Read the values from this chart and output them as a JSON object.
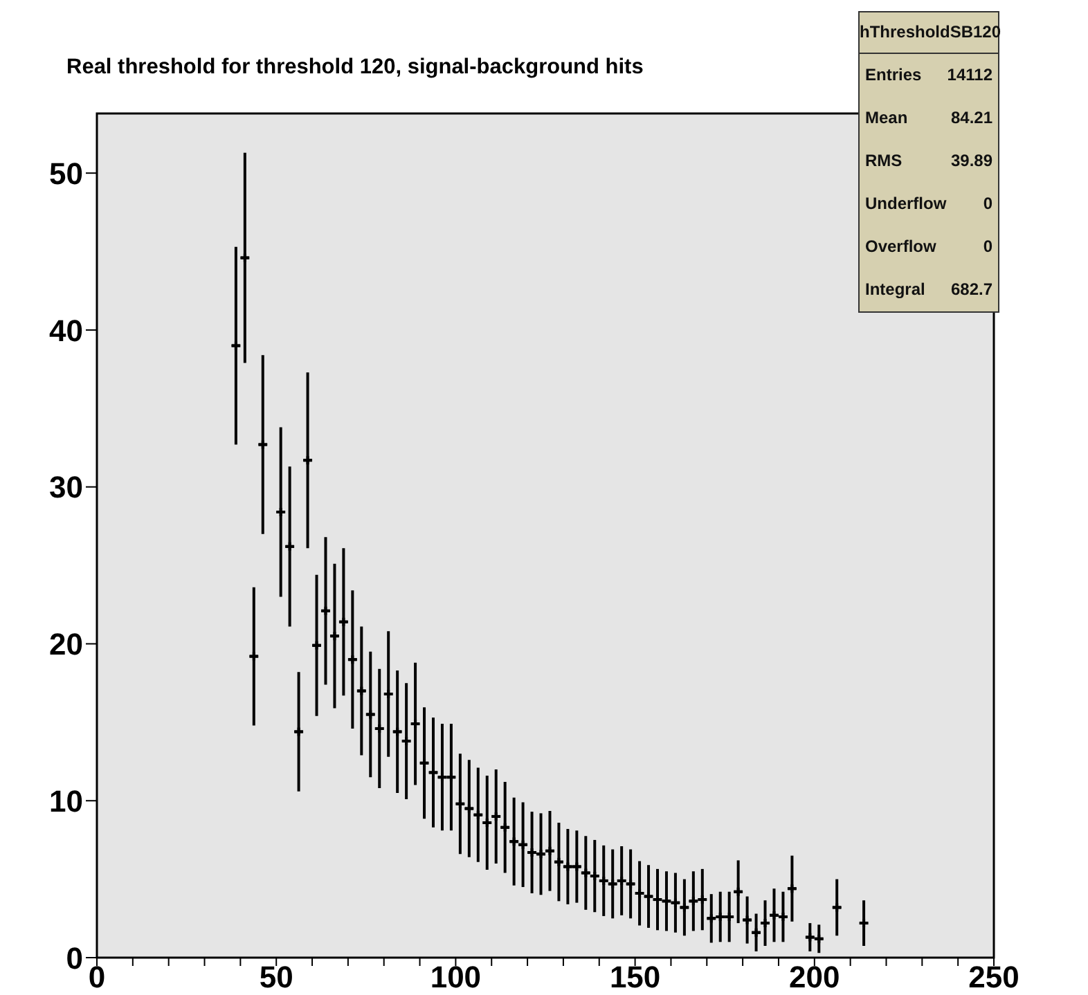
{
  "chart_data": {
    "type": "scatter",
    "title": "Real threshold for threshold 120, signal-background hits",
    "annotations": [
      "hThresholdSB120",
      "Entries",
      "14112",
      "Mean",
      "84.21",
      "RMS",
      "39.89",
      "Underflow",
      "0",
      "Overflow",
      "0",
      "Integral",
      "682.7"
    ],
    "x": [
      38.75,
      41.25,
      43.75,
      46.25,
      51.25,
      53.75,
      56.25,
      58.75,
      61.25,
      63.75,
      66.25,
      68.75,
      71.25,
      73.75,
      76.25,
      78.75,
      81.25,
      83.75,
      86.25,
      88.75,
      91.25,
      93.75,
      96.25,
      98.75,
      101.25,
      103.75,
      106.25,
      108.75,
      111.25,
      113.75,
      116.25,
      118.75,
      121.25,
      123.75,
      126.25,
      128.75,
      131.25,
      133.75,
      136.25,
      138.75,
      141.25,
      143.75,
      146.25,
      148.75,
      151.25,
      153.75,
      156.25,
      158.75,
      161.25,
      163.75,
      166.25,
      168.75,
      171.25,
      173.75,
      176.25,
      178.75,
      181.25,
      183.75,
      186.25,
      188.75,
      191.25,
      193.75,
      198.75,
      201.25,
      206.25,
      213.75
    ],
    "values": [
      39.0,
      44.6,
      19.2,
      32.7,
      28.4,
      26.2,
      14.4,
      31.7,
      19.9,
      22.1,
      20.5,
      21.4,
      19.0,
      17.0,
      15.5,
      14.6,
      16.8,
      14.4,
      13.8,
      14.9,
      12.4,
      11.8,
      11.5,
      11.5,
      9.8,
      9.5,
      9.1,
      8.6,
      9.0,
      8.3,
      7.4,
      7.2,
      6.7,
      6.6,
      6.8,
      6.1,
      5.8,
      5.8,
      5.4,
      5.2,
      4.9,
      4.7,
      4.9,
      4.7,
      4.1,
      3.9,
      3.7,
      3.6,
      3.5,
      3.2,
      3.6,
      3.7,
      2.5,
      2.6,
      2.6,
      4.2,
      2.4,
      1.6,
      2.2,
      2.7,
      2.6,
      4.4,
      1.3,
      1.2,
      3.2,
      2.2
    ],
    "errors": [
      6.3,
      6.7,
      4.4,
      5.7,
      5.4,
      5.1,
      3.8,
      5.6,
      4.5,
      4.7,
      4.6,
      4.7,
      4.4,
      4.1,
      4.0,
      3.8,
      4.0,
      3.9,
      3.7,
      3.9,
      3.55,
      3.5,
      3.4,
      3.4,
      3.2,
      3.1,
      3.0,
      3.0,
      3.0,
      2.9,
      2.8,
      2.7,
      2.6,
      2.6,
      2.55,
      2.5,
      2.4,
      2.3,
      2.35,
      2.3,
      2.25,
      2.2,
      2.2,
      2.2,
      2.05,
      2.0,
      1.95,
      1.9,
      1.9,
      1.8,
      1.9,
      1.95,
      1.55,
      1.6,
      1.6,
      2.0,
      1.5,
      1.2,
      1.45,
      1.7,
      1.6,
      2.1,
      0.9,
      0.9,
      1.8,
      1.45
    ],
    "xerrors": [
      1.25,
      1.25,
      1.25,
      1.25,
      1.25,
      1.25,
      1.25,
      1.25,
      1.25,
      1.25,
      1.25,
      1.25,
      1.25,
      1.25,
      1.25,
      1.25,
      1.25,
      1.25,
      1.25,
      1.25,
      1.25,
      1.25,
      1.25,
      1.25,
      1.25,
      1.25,
      1.25,
      1.25,
      1.25,
      1.25,
      1.25,
      1.25,
      1.25,
      1.25,
      1.25,
      1.25,
      1.25,
      1.25,
      1.25,
      1.25,
      1.25,
      1.25,
      1.25,
      1.25,
      1.25,
      1.25,
      1.25,
      1.25,
      1.25,
      1.25,
      1.25,
      1.25,
      1.25,
      1.25,
      1.25,
      1.25,
      1.25,
      1.25,
      1.25,
      1.25,
      1.25,
      1.25,
      1.25,
      1.25,
      1.25,
      1.25
    ],
    "color": "#000000",
    "marker": "cross",
    "xlim": [
      0,
      250
    ],
    "ylim": [
      0,
      53.8
    ],
    "xticks": [
      0,
      {
        "value": 10,
        "label": null
      },
      {
        "value": 20,
        "label": null
      },
      {
        "value": 30,
        "label": null
      },
      {
        "value": 40,
        "label": null
      },
      50,
      {
        "value": 60,
        "label": null
      },
      {
        "value": 70,
        "label": null
      },
      {
        "value": 80,
        "label": null
      },
      {
        "value": 90,
        "label": null
      },
      100,
      {
        "value": 110,
        "label": null
      },
      {
        "value": 120,
        "label": null
      },
      {
        "value": 130,
        "label": null
      },
      {
        "value": 140,
        "label": null
      },
      150,
      {
        "value": 160,
        "label": null
      },
      {
        "value": 170,
        "label": null
      },
      {
        "value": 180,
        "label": null
      },
      {
        "value": 190,
        "label": null
      },
      200,
      {
        "value": 210,
        "label": null
      },
      {
        "value": 220,
        "label": null
      },
      {
        "value": 230,
        "label": null
      },
      {
        "value": 240,
        "label": null
      },
      250
    ],
    "yticks": [
      0,
      10,
      20,
      30,
      40,
      50
    ]
  }
}
